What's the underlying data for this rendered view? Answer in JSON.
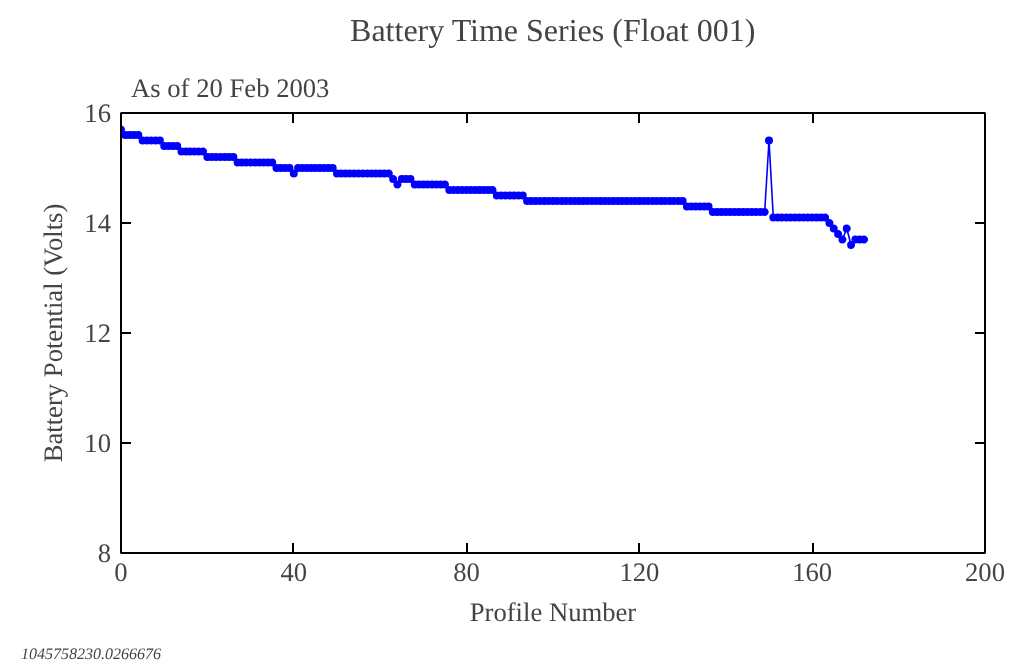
{
  "chart_data": {
    "type": "line",
    "title": "Battery Time Series (Float 001)",
    "subtitle": "As of 20 Feb 2003",
    "xlabel": "Profile Number",
    "ylabel": "Battery Potential (Volts)",
    "annotations": [
      "1045758230.0266676"
    ],
    "x": [
      0,
      1,
      2,
      3,
      4,
      5,
      6,
      7,
      8,
      9,
      10,
      11,
      12,
      13,
      14,
      15,
      16,
      17,
      18,
      19,
      20,
      21,
      22,
      23,
      24,
      25,
      26,
      27,
      28,
      29,
      30,
      31,
      32,
      33,
      34,
      35,
      36,
      37,
      38,
      39,
      40,
      41,
      42,
      43,
      44,
      45,
      46,
      47,
      48,
      49,
      50,
      51,
      52,
      53,
      54,
      55,
      56,
      57,
      58,
      59,
      60,
      61,
      62,
      63,
      64,
      65,
      66,
      67,
      68,
      69,
      70,
      71,
      72,
      73,
      74,
      75,
      76,
      77,
      78,
      79,
      80,
      81,
      82,
      83,
      84,
      85,
      86,
      87,
      88,
      89,
      90,
      91,
      92,
      93,
      94,
      95,
      96,
      97,
      98,
      99,
      100,
      101,
      102,
      103,
      104,
      105,
      106,
      107,
      108,
      109,
      110,
      111,
      112,
      113,
      114,
      115,
      116,
      117,
      118,
      119,
      120,
      121,
      122,
      123,
      124,
      125,
      126,
      127,
      128,
      129,
      130,
      131,
      132,
      133,
      134,
      135,
      136,
      137,
      138,
      139,
      140,
      141,
      142,
      143,
      144,
      145,
      146,
      147,
      148,
      149,
      150,
      151,
      152,
      153,
      154,
      155,
      156,
      157,
      158,
      159,
      160,
      161,
      162,
      163,
      164,
      165,
      166,
      167,
      168,
      169,
      170,
      171,
      172
    ],
    "series": [
      {
        "color": "#0000ff",
        "values": [
          15.7,
          15.6,
          15.6,
          15.6,
          15.6,
          15.5,
          15.5,
          15.5,
          15.5,
          15.5,
          15.4,
          15.4,
          15.4,
          15.4,
          15.3,
          15.3,
          15.3,
          15.3,
          15.3,
          15.3,
          15.2,
          15.2,
          15.2,
          15.2,
          15.2,
          15.2,
          15.2,
          15.1,
          15.1,
          15.1,
          15.1,
          15.1,
          15.1,
          15.1,
          15.1,
          15.1,
          15.0,
          15.0,
          15.0,
          15.0,
          14.9,
          15.0,
          15.0,
          15.0,
          15.0,
          15.0,
          15.0,
          15.0,
          15.0,
          15.0,
          14.9,
          14.9,
          14.9,
          14.9,
          14.9,
          14.9,
          14.9,
          14.9,
          14.9,
          14.9,
          14.9,
          14.9,
          14.9,
          14.8,
          14.7,
          14.8,
          14.8,
          14.8,
          14.7,
          14.7,
          14.7,
          14.7,
          14.7,
          14.7,
          14.7,
          14.7,
          14.6,
          14.6,
          14.6,
          14.6,
          14.6,
          14.6,
          14.6,
          14.6,
          14.6,
          14.6,
          14.6,
          14.5,
          14.5,
          14.5,
          14.5,
          14.5,
          14.5,
          14.5,
          14.4,
          14.4,
          14.4,
          14.4,
          14.4,
          14.4,
          14.4,
          14.4,
          14.4,
          14.4,
          14.4,
          14.4,
          14.4,
          14.4,
          14.4,
          14.4,
          14.4,
          14.4,
          14.4,
          14.4,
          14.4,
          14.4,
          14.4,
          14.4,
          14.4,
          14.4,
          14.4,
          14.4,
          14.4,
          14.4,
          14.4,
          14.4,
          14.4,
          14.4,
          14.4,
          14.4,
          14.4,
          14.3,
          14.3,
          14.3,
          14.3,
          14.3,
          14.3,
          14.2,
          14.2,
          14.2,
          14.2,
          14.2,
          14.2,
          14.2,
          14.2,
          14.2,
          14.2,
          14.2,
          14.2,
          14.2,
          15.5,
          14.1,
          14.1,
          14.1,
          14.1,
          14.1,
          14.1,
          14.1,
          14.1,
          14.1,
          14.1,
          14.1,
          14.1,
          14.1,
          14.0,
          13.9,
          13.8,
          13.7,
          13.9,
          13.6,
          13.7,
          13.7,
          13.7
        ]
      }
    ],
    "xlim": [
      0,
      200
    ],
    "ylim": [
      8,
      16
    ],
    "xticks": [
      0,
      40,
      80,
      120,
      160,
      200
    ],
    "yticks": [
      8,
      10,
      12,
      14,
      16
    ],
    "grid": false,
    "marker": "circle",
    "line_style": "solid"
  }
}
